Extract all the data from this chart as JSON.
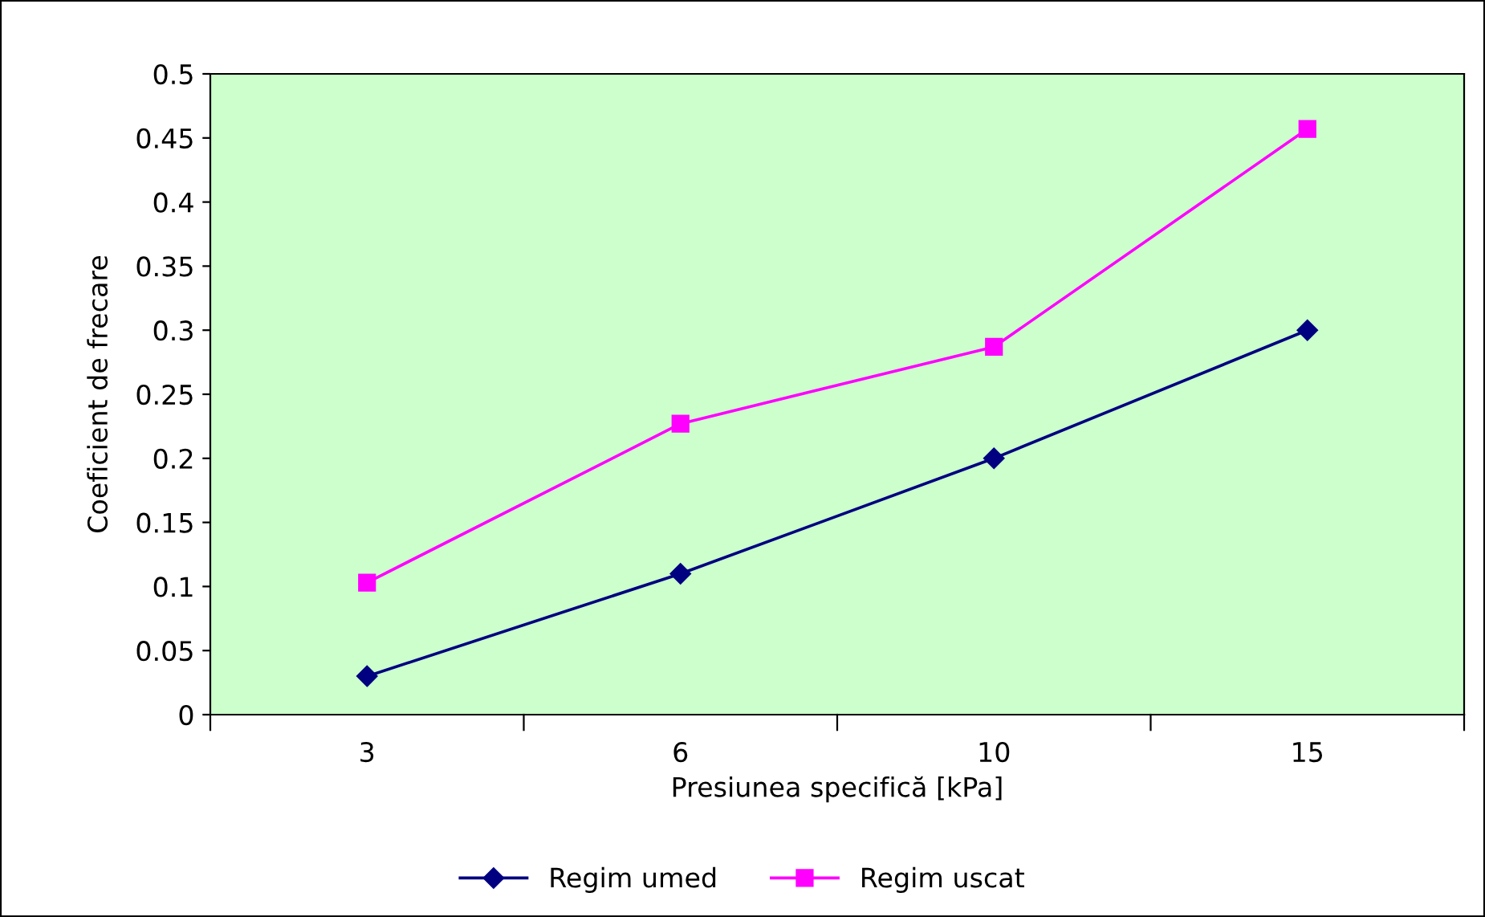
{
  "chart_data": {
    "type": "line",
    "xlabel": "Presiunea specifică [kPa]",
    "ylabel": "Coeficient de frecare",
    "categories": [
      "3",
      "6",
      "10",
      "15"
    ],
    "series": [
      {
        "name": "Regim umed",
        "color": "#000080",
        "marker": "diamond",
        "values": [
          0.03,
          0.11,
          0.2,
          0.3
        ]
      },
      {
        "name": "Regim uscat",
        "color": "#ff00ff",
        "marker": "square",
        "values": [
          0.103,
          0.227,
          0.287,
          0.457
        ]
      }
    ],
    "ylim": [
      0,
      0.5
    ],
    "yticks": [
      0,
      0.05,
      0.1,
      0.15,
      0.2,
      0.25,
      0.3,
      0.35,
      0.4,
      0.45,
      0.5
    ],
    "grid": false,
    "legend": "bottom",
    "line_style": "solid"
  }
}
